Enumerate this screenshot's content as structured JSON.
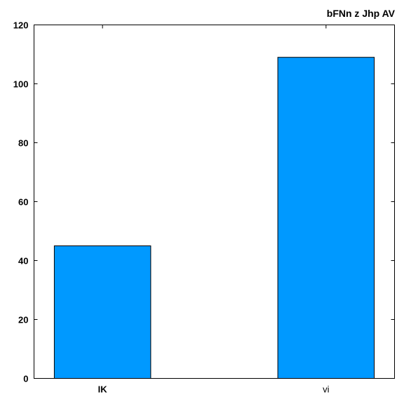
{
  "chart_data": {
    "type": "bar",
    "title": "bFNn z Jhp AV",
    "categories": [
      "IK",
      "vi"
    ],
    "category_label_bold": [
      true,
      false
    ],
    "values": [
      45,
      109
    ],
    "ylim": [
      0,
      120
    ],
    "yticks": [
      0,
      20,
      40,
      60,
      80,
      100,
      120
    ],
    "xlabel": "",
    "ylabel": "",
    "grid": false,
    "bar_color": "#0099ff",
    "bar_edge_color": "#000000"
  }
}
